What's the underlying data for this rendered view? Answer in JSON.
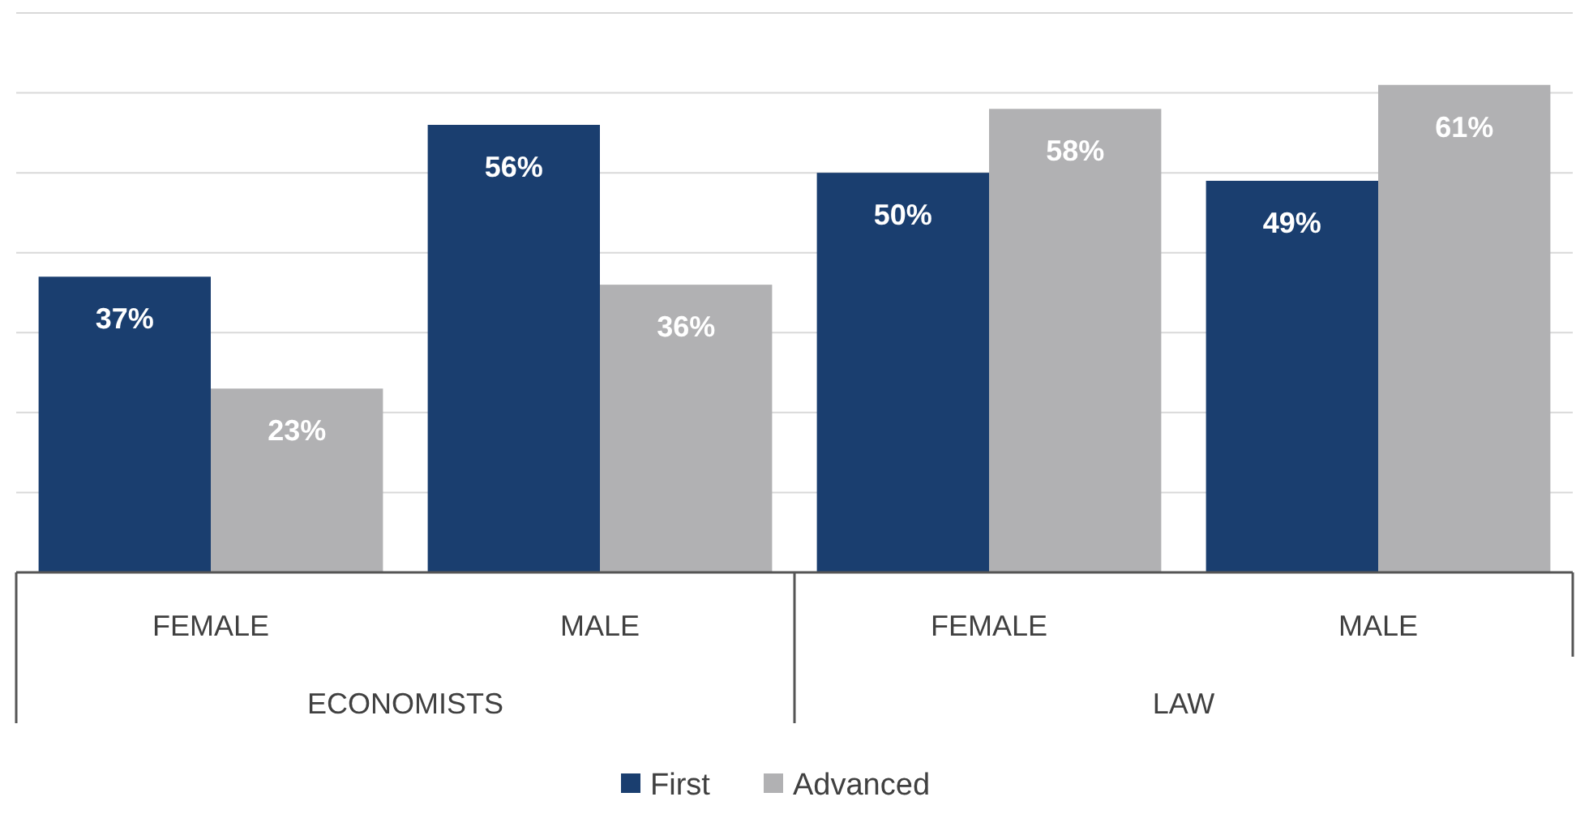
{
  "chart_data": {
    "type": "bar",
    "categories": [
      "FEMALE",
      "MALE",
      "FEMALE",
      "MALE"
    ],
    "series": [
      {
        "name": "First",
        "color": "#1a3e6f",
        "values": [
          37,
          56,
          50,
          49
        ],
        "value_labels": [
          "37%",
          "56%",
          "50%",
          "49%"
        ]
      },
      {
        "name": "Advanced",
        "color": "#b1b1b3",
        "values": [
          23,
          36,
          58,
          61
        ],
        "value_labels": [
          "23%",
          "36%",
          "58%",
          "61%"
        ]
      }
    ],
    "annotations": [
      "ECONOMISTS",
      "LAW"
    ],
    "ylim": [
      0,
      70
    ],
    "yticks": [
      {
        "value": 0,
        "label": null
      },
      {
        "value": 10,
        "label": null
      },
      {
        "value": 20,
        "label": null
      },
      {
        "value": 30,
        "label": null
      },
      {
        "value": 40,
        "label": null
      },
      {
        "value": 50,
        "label": null
      },
      {
        "value": 60,
        "label": null
      },
      {
        "value": 70,
        "label": null
      }
    ],
    "tick_labels": "x",
    "grid": "y",
    "legend": "bottom"
  }
}
